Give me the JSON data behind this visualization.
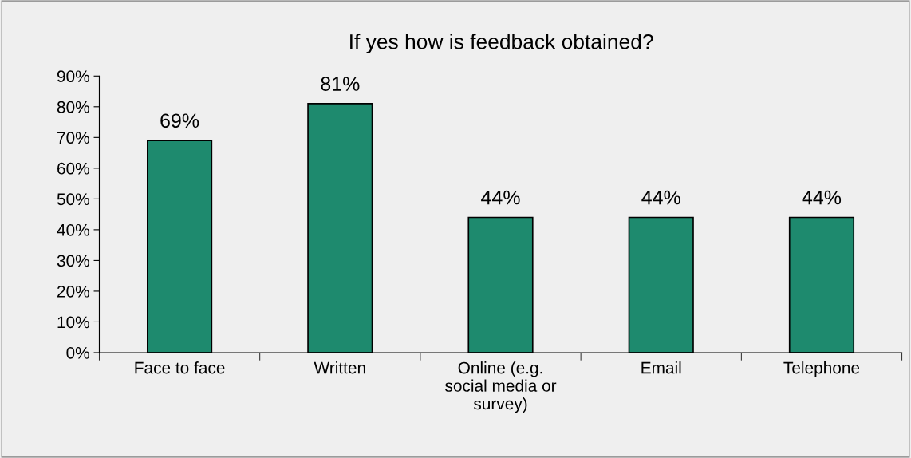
{
  "chart_data": {
    "type": "bar",
    "title": "If yes how is feedback obtained?",
    "categories": [
      "Face to face",
      "Written",
      "Online (e.g.\nsocial media or\nsurvey)",
      "Email",
      "Telephone"
    ],
    "values": [
      69,
      81,
      44,
      44,
      44
    ],
    "value_labels": [
      "69%",
      "81%",
      "44%",
      "44%",
      "44%"
    ],
    "color": "#1e8a6e",
    "ylim": [
      0,
      90
    ],
    "yticks": [
      {
        "value": 0,
        "label": "0%"
      },
      {
        "value": 10,
        "label": "10%"
      },
      {
        "value": 20,
        "label": "20%"
      },
      {
        "value": 30,
        "label": "30%"
      },
      {
        "value": 40,
        "label": "40%"
      },
      {
        "value": 50,
        "label": "50%"
      },
      {
        "value": 60,
        "label": "60%"
      },
      {
        "value": 70,
        "label": "70%"
      },
      {
        "value": 80,
        "label": "80%"
      },
      {
        "value": 90,
        "label": "90%"
      }
    ],
    "grid": false
  }
}
